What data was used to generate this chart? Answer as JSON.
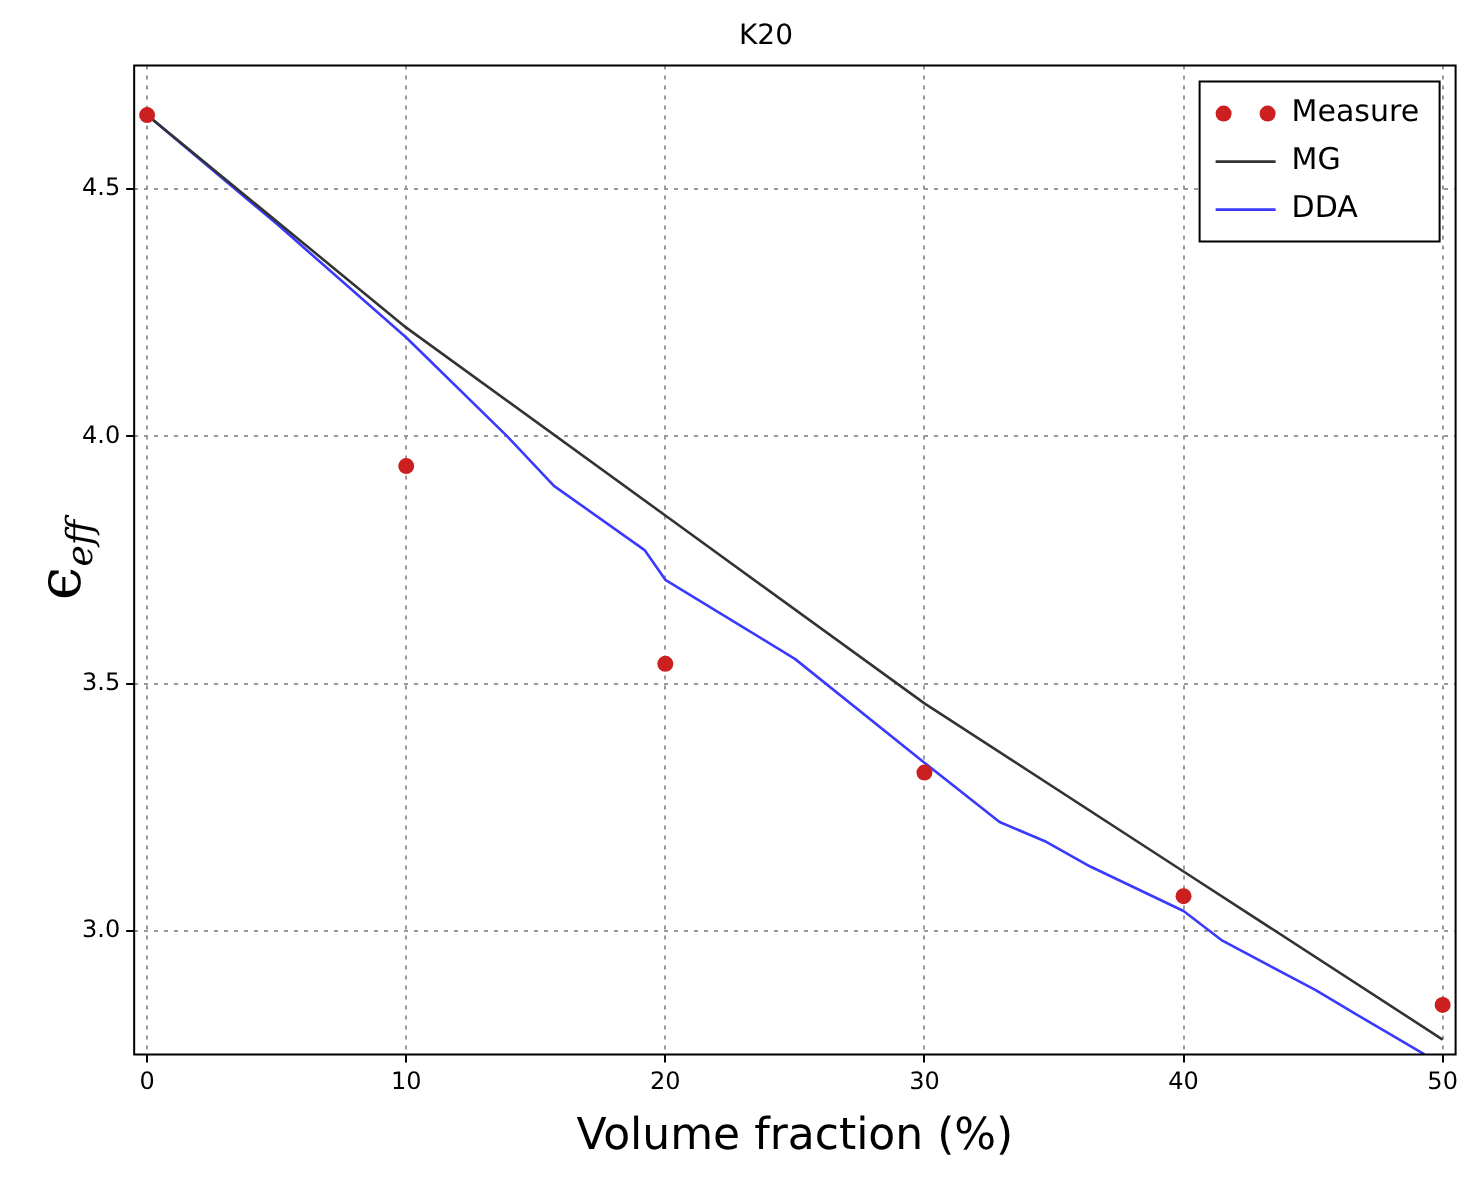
{
  "chart_data": {
    "type": "line",
    "title": "K20",
    "xlabel": "Volume fraction (%)",
    "ylabel": "ϵ$_{eff}$",
    "xlim": [
      -0.5,
      50.5
    ],
    "xticks": [
      0,
      10,
      20,
      30,
      40,
      50
    ],
    "ylim": [
      2.75,
      4.75
    ],
    "yticks": [
      {
        "value": 3.0,
        "label": "3.0"
      },
      {
        "value": 3.5,
        "label": "3.5"
      },
      {
        "value": 4.0,
        "label": "4.0"
      },
      {
        "value": 4.5,
        "label": "4.5"
      }
    ],
    "grid": true,
    "legend": "top right",
    "line_style": "solid",
    "series": [
      {
        "name": "Measure",
        "type": "scatter",
        "marker": "circle",
        "color": "#cc2020",
        "x": [
          0,
          10,
          20,
          30,
          40,
          50
        ],
        "values": [
          4.65,
          3.94,
          3.54,
          3.32,
          3.07,
          2.85
        ]
      },
      {
        "name": "MG",
        "marker": "none",
        "color": "#333333",
        "x": [
          0,
          10,
          20,
          30,
          40,
          50
        ],
        "values": [
          4.65,
          4.22,
          3.84,
          3.46,
          3.12,
          2.78
        ]
      },
      {
        "name": "DDA",
        "marker": "none",
        "color": "#3a3aff",
        "x": [
          0,
          5,
          10,
          13.9,
          15.7,
          19.2,
          20,
          25,
          30,
          32.9,
          34.7,
          36.4,
          40,
          41.5,
          45.1,
          46.7,
          49.3
        ],
        "values": [
          4.65,
          4.43,
          4.2,
          4.0,
          3.9,
          3.77,
          3.71,
          3.55,
          3.34,
          3.22,
          3.18,
          3.13,
          3.04,
          2.98,
          2.88,
          2.83,
          2.75
        ]
      }
    ]
  }
}
